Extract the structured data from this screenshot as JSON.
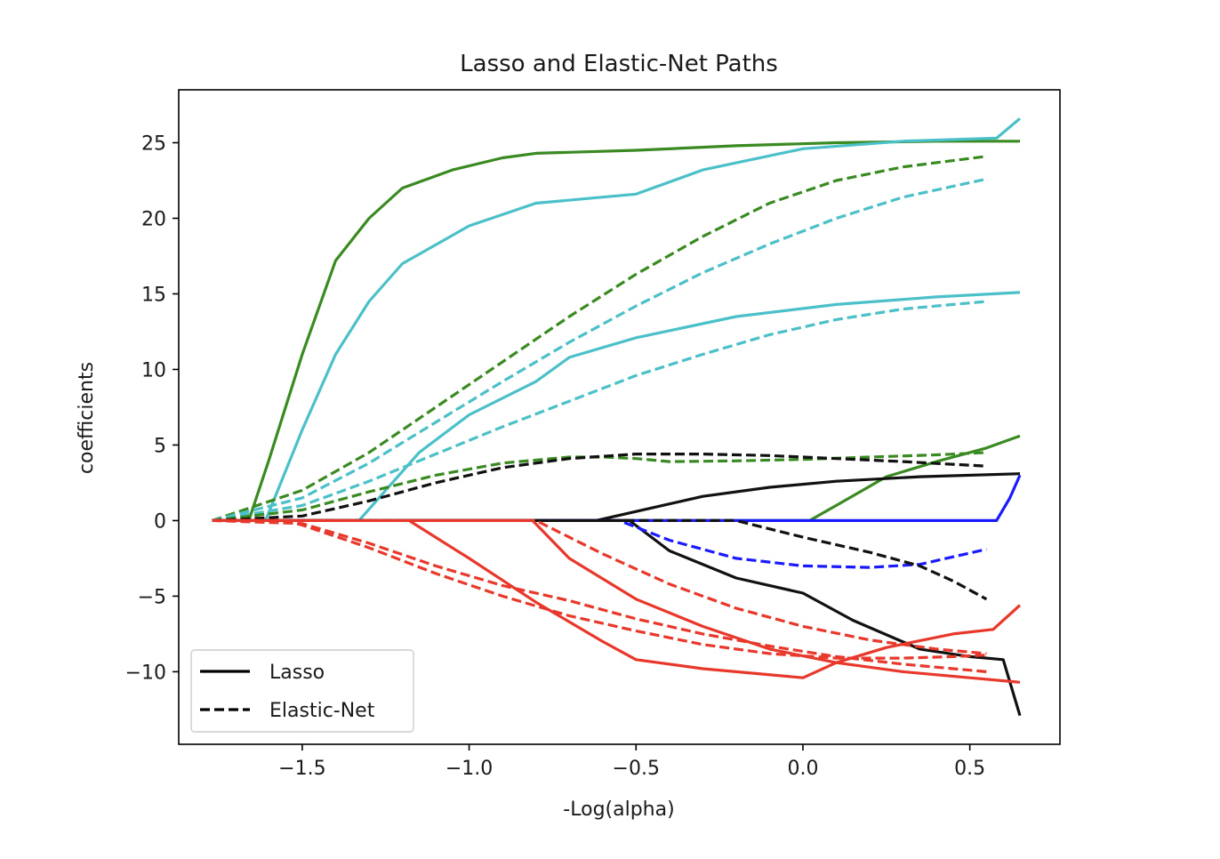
{
  "chart_data": {
    "type": "line",
    "title": "Lasso and Elastic-Net Paths",
    "xlabel": "-Log(alpha)",
    "ylabel": "coefficients",
    "xlim": [
      -1.87,
      0.77
    ],
    "ylim": [
      -14.8,
      28.5
    ],
    "xticks": [
      {
        "value": -1.5,
        "label": "−1.5"
      },
      {
        "value": -1.0,
        "label": "−1.0"
      },
      {
        "value": -0.5,
        "label": "−0.5"
      },
      {
        "value": 0.0,
        "label": "0.0"
      },
      {
        "value": 0.5,
        "label": "0.5"
      }
    ],
    "yticks": [
      {
        "value": 25,
        "label": "25"
      },
      {
        "value": 20,
        "label": "20"
      },
      {
        "value": 15,
        "label": "15"
      },
      {
        "value": 10,
        "label": "10"
      },
      {
        "value": 5,
        "label": "5"
      },
      {
        "value": 0,
        "label": "0"
      },
      {
        "value": -5,
        "label": "−5"
      },
      {
        "value": -10,
        "label": "−10"
      }
    ],
    "grid": false,
    "legend": {
      "position": "lower-left",
      "entries": [
        {
          "label": "Lasso",
          "style": "solid",
          "color": "#000000"
        },
        {
          "label": "Elastic-Net",
          "style": "dashed",
          "color": "#000000"
        }
      ]
    },
    "colors": {
      "black": "#111111",
      "blue": "#1a1aff",
      "green": "#3a8a22",
      "cyan": "#4bc0c8",
      "red": "#e8382c"
    },
    "series": [
      {
        "method": "Lasso",
        "color": "green",
        "points": [
          [
            -1.77,
            0
          ],
          [
            -1.66,
            0
          ],
          [
            -1.6,
            4
          ],
          [
            -1.5,
            11
          ],
          [
            -1.4,
            17.2
          ],
          [
            -1.3,
            20
          ],
          [
            -1.2,
            22
          ],
          [
            -1.05,
            23.2
          ],
          [
            -0.9,
            24
          ],
          [
            -0.8,
            24.3
          ],
          [
            -0.5,
            24.5
          ],
          [
            -0.2,
            24.8
          ],
          [
            0.1,
            25
          ],
          [
            0.4,
            25.1
          ],
          [
            0.65,
            25.1
          ]
        ]
      },
      {
        "method": "Lasso",
        "color": "cyan",
        "points": [
          [
            -1.77,
            0
          ],
          [
            -1.61,
            0
          ],
          [
            -1.5,
            6
          ],
          [
            -1.4,
            11
          ],
          [
            -1.3,
            14.5
          ],
          [
            -1.2,
            17
          ],
          [
            -1.0,
            19.5
          ],
          [
            -0.8,
            21
          ],
          [
            -0.6,
            21.4
          ],
          [
            -0.5,
            21.6
          ],
          [
            -0.3,
            23.2
          ],
          [
            0.0,
            24.6
          ],
          [
            0.3,
            25.1
          ],
          [
            0.58,
            25.3
          ],
          [
            0.65,
            26.6
          ]
        ]
      },
      {
        "method": "Lasso",
        "color": "cyan",
        "points": [
          [
            -1.77,
            0
          ],
          [
            -1.33,
            0
          ],
          [
            -1.25,
            2
          ],
          [
            -1.15,
            4.5
          ],
          [
            -1.0,
            7
          ],
          [
            -0.8,
            9.2
          ],
          [
            -0.7,
            10.8
          ],
          [
            -0.5,
            12.1
          ],
          [
            -0.2,
            13.5
          ],
          [
            0.1,
            14.3
          ],
          [
            0.4,
            14.8
          ],
          [
            0.65,
            15.1
          ]
        ]
      },
      {
        "method": "Lasso",
        "color": "green",
        "points": [
          [
            -1.77,
            0
          ],
          [
            0.02,
            0
          ],
          [
            0.1,
            1
          ],
          [
            0.25,
            2.9
          ],
          [
            0.4,
            3.9
          ],
          [
            0.55,
            4.8
          ],
          [
            0.65,
            5.6
          ]
        ]
      },
      {
        "method": "Lasso",
        "color": "black",
        "points": [
          [
            -1.77,
            0
          ],
          [
            -0.62,
            0
          ],
          [
            -0.5,
            0.6
          ],
          [
            -0.3,
            1.6
          ],
          [
            -0.1,
            2.2
          ],
          [
            0.1,
            2.6
          ],
          [
            0.35,
            2.9
          ],
          [
            0.65,
            3.1
          ]
        ]
      },
      {
        "method": "Lasso",
        "color": "blue",
        "points": [
          [
            -1.77,
            0
          ],
          [
            0.58,
            0
          ],
          [
            0.62,
            1.5
          ],
          [
            0.65,
            3
          ]
        ]
      },
      {
        "method": "Lasso",
        "color": "black",
        "points": [
          [
            -1.77,
            0
          ],
          [
            -0.52,
            0
          ],
          [
            -0.4,
            -2
          ],
          [
            -0.2,
            -3.8
          ],
          [
            0.0,
            -4.8
          ],
          [
            0.15,
            -6.6
          ],
          [
            0.35,
            -8.5
          ],
          [
            0.5,
            -9
          ],
          [
            0.6,
            -9.2
          ],
          [
            0.65,
            -12.9
          ]
        ]
      },
      {
        "method": "Lasso",
        "color": "red",
        "points": [
          [
            -1.77,
            0
          ],
          [
            -1.18,
            0
          ],
          [
            -1.0,
            -2.5
          ],
          [
            -0.8,
            -5.4
          ],
          [
            -0.6,
            -8
          ],
          [
            -0.5,
            -9.2
          ],
          [
            -0.3,
            -9.8
          ],
          [
            0.0,
            -10.4
          ],
          [
            0.1,
            -9.4
          ],
          [
            0.25,
            -8.4
          ],
          [
            0.45,
            -7.5
          ],
          [
            0.57,
            -7.2
          ],
          [
            0.65,
            -5.6
          ]
        ]
      },
      {
        "method": "Lasso",
        "color": "red",
        "points": [
          [
            -1.77,
            0
          ],
          [
            -0.81,
            0
          ],
          [
            -0.7,
            -2.5
          ],
          [
            -0.5,
            -5.2
          ],
          [
            -0.3,
            -7
          ],
          [
            -0.1,
            -8.5
          ],
          [
            0.1,
            -9.4
          ],
          [
            0.3,
            -10
          ],
          [
            0.5,
            -10.4
          ],
          [
            0.65,
            -10.7
          ]
        ]
      },
      {
        "method": "Elastic-Net",
        "color": "green",
        "points": [
          [
            -1.77,
            0
          ],
          [
            -1.5,
            2
          ],
          [
            -1.3,
            4.5
          ],
          [
            -1.1,
            7.5
          ],
          [
            -0.9,
            10.5
          ],
          [
            -0.7,
            13.5
          ],
          [
            -0.5,
            16.3
          ],
          [
            -0.3,
            18.8
          ],
          [
            -0.1,
            21
          ],
          [
            0.1,
            22.5
          ],
          [
            0.3,
            23.4
          ],
          [
            0.55,
            24.1
          ]
        ]
      },
      {
        "method": "Elastic-Net",
        "color": "cyan",
        "points": [
          [
            -1.77,
            0
          ],
          [
            -1.5,
            1.5
          ],
          [
            -1.3,
            3.8
          ],
          [
            -1.1,
            6.5
          ],
          [
            -0.9,
            9.2
          ],
          [
            -0.7,
            11.8
          ],
          [
            -0.5,
            14.2
          ],
          [
            -0.3,
            16.4
          ],
          [
            -0.1,
            18.3
          ],
          [
            0.1,
            20
          ],
          [
            0.3,
            21.4
          ],
          [
            0.55,
            22.6
          ]
        ]
      },
      {
        "method": "Elastic-Net",
        "color": "cyan",
        "points": [
          [
            -1.77,
            0
          ],
          [
            -1.5,
            1
          ],
          [
            -1.3,
            2.6
          ],
          [
            -1.1,
            4.4
          ],
          [
            -0.9,
            6.2
          ],
          [
            -0.7,
            7.9
          ],
          [
            -0.5,
            9.6
          ],
          [
            -0.3,
            11
          ],
          [
            -0.1,
            12.3
          ],
          [
            0.1,
            13.3
          ],
          [
            0.3,
            14
          ],
          [
            0.55,
            14.5
          ]
        ]
      },
      {
        "method": "Elastic-Net",
        "color": "green",
        "points": [
          [
            -1.77,
            0
          ],
          [
            -1.5,
            0.7
          ],
          [
            -1.3,
            1.9
          ],
          [
            -1.1,
            3
          ],
          [
            -0.9,
            3.8
          ],
          [
            -0.7,
            4.2
          ],
          [
            -0.6,
            4.2
          ],
          [
            -0.5,
            4.1
          ],
          [
            -0.4,
            3.9
          ],
          [
            -0.2,
            3.95
          ],
          [
            0.0,
            4.05
          ],
          [
            0.2,
            4.2
          ],
          [
            0.4,
            4.35
          ],
          [
            0.55,
            4.5
          ]
        ]
      },
      {
        "method": "Elastic-Net",
        "color": "black",
        "points": [
          [
            -1.77,
            0
          ],
          [
            -1.5,
            0.3
          ],
          [
            -1.3,
            1.3
          ],
          [
            -1.1,
            2.5
          ],
          [
            -0.9,
            3.5
          ],
          [
            -0.7,
            4.1
          ],
          [
            -0.5,
            4.4
          ],
          [
            -0.3,
            4.4
          ],
          [
            -0.1,
            4.3
          ],
          [
            0.1,
            4.1
          ],
          [
            0.3,
            3.9
          ],
          [
            0.55,
            3.6
          ]
        ]
      },
      {
        "method": "Elastic-Net",
        "color": "blue",
        "points": [
          [
            -1.77,
            0
          ],
          [
            -0.55,
            0
          ],
          [
            -0.4,
            -1.3
          ],
          [
            -0.2,
            -2.5
          ],
          [
            0.0,
            -3
          ],
          [
            0.2,
            -3.1
          ],
          [
            0.35,
            -2.9
          ],
          [
            0.45,
            -2.4
          ],
          [
            0.55,
            -1.9
          ]
        ]
      },
      {
        "method": "Elastic-Net",
        "color": "black",
        "points": [
          [
            -1.77,
            0
          ],
          [
            -0.2,
            0
          ],
          [
            0.0,
            -1.1
          ],
          [
            0.2,
            -2.1
          ],
          [
            0.35,
            -3
          ],
          [
            0.45,
            -4
          ],
          [
            0.55,
            -5.2
          ]
        ]
      },
      {
        "method": "Elastic-Net",
        "color": "red",
        "points": [
          [
            -1.77,
            0
          ],
          [
            -1.5,
            -0.2
          ],
          [
            -1.3,
            -1.5
          ],
          [
            -1.1,
            -3
          ],
          [
            -0.9,
            -4.3
          ],
          [
            -0.7,
            -5.3
          ],
          [
            -0.5,
            -6.5
          ],
          [
            -0.3,
            -7.5
          ],
          [
            -0.1,
            -8.3
          ],
          [
            0.1,
            -9
          ],
          [
            0.3,
            -9.5
          ],
          [
            0.55,
            -10
          ]
        ]
      },
      {
        "method": "Elastic-Net",
        "color": "red",
        "points": [
          [
            -1.77,
            0
          ],
          [
            -0.8,
            0
          ],
          [
            -0.6,
            -2.2
          ],
          [
            -0.4,
            -4.2
          ],
          [
            -0.2,
            -5.8
          ],
          [
            0.0,
            -7
          ],
          [
            0.2,
            -7.9
          ],
          [
            0.4,
            -8.5
          ],
          [
            0.55,
            -8.8
          ]
        ]
      },
      {
        "method": "Elastic-Net",
        "color": "red",
        "points": [
          [
            -1.77,
            0
          ],
          [
            -1.55,
            0
          ],
          [
            -1.5,
            -0.3
          ],
          [
            -1.3,
            -1.8
          ],
          [
            -1.1,
            -3.5
          ],
          [
            -0.9,
            -5
          ],
          [
            -0.7,
            -6.3
          ],
          [
            -0.5,
            -7.3
          ],
          [
            -0.3,
            -8.2
          ],
          [
            -0.1,
            -8.8
          ],
          [
            0.1,
            -9.1
          ],
          [
            0.3,
            -9.1
          ],
          [
            0.45,
            -9
          ],
          [
            0.55,
            -8.9
          ]
        ]
      }
    ]
  }
}
